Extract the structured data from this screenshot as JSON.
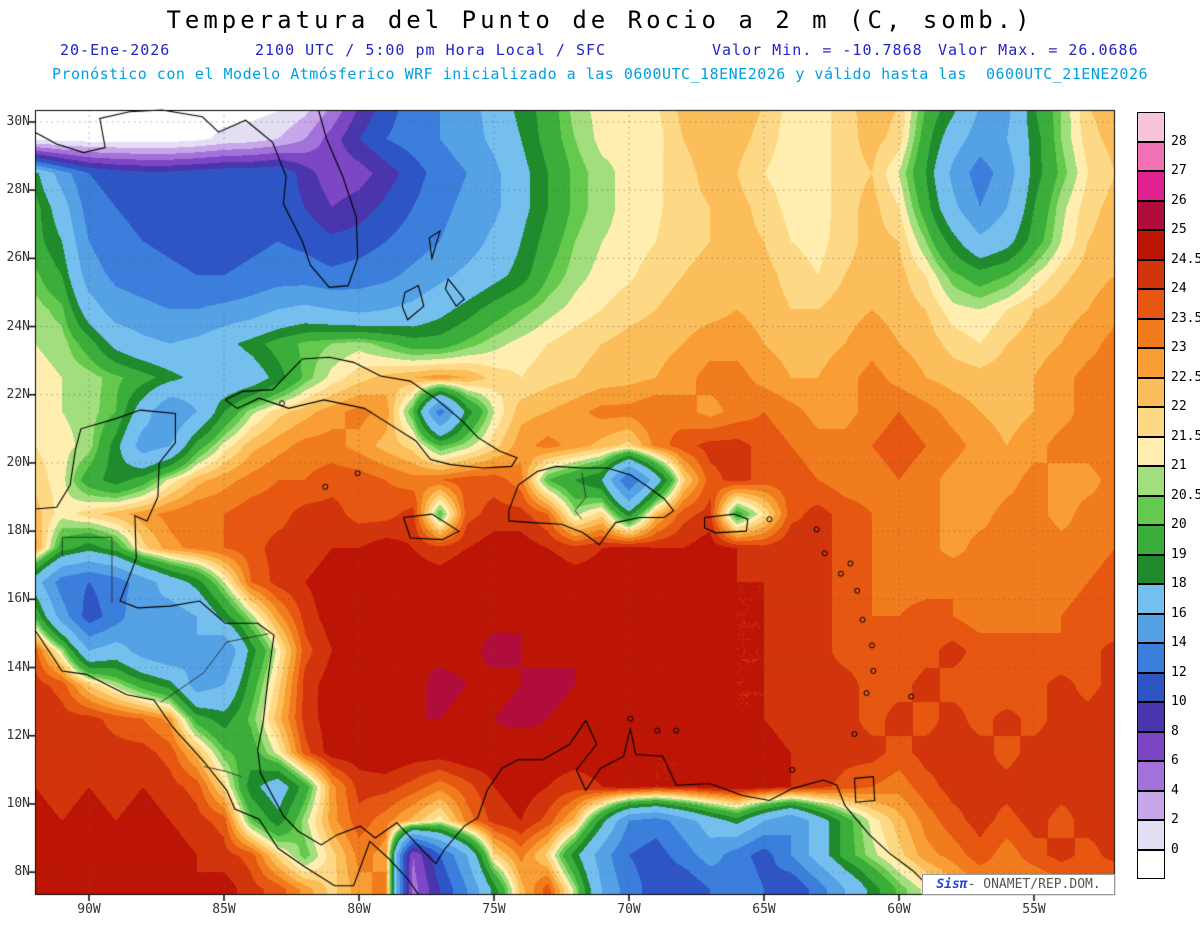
{
  "header": {
    "title": "Temperatura del Punto de Rocio a 2 m (C, somb.)",
    "date": "20-Ene-2026",
    "time_line": "2100 UTC / 5:00 pm Hora Local / SFC",
    "min_label": "Valor Min. = -10.7868",
    "max_label": "Valor Max. = 26.0686",
    "model_line": "Pronóstico con el Modelo Atmósferico WRF inicializado a las 0600UTC_18ENE2026 y válido hasta las  0600UTC_21ENE2026"
  },
  "credit": {
    "brand": "Sisπ",
    "source": "- ONAMET/REP.DOM."
  },
  "axes": {
    "lat_tick_labels": [
      "30N",
      "28N",
      "26N",
      "24N",
      "22N",
      "20N",
      "18N",
      "16N",
      "14N",
      "12N",
      "10N",
      "8N"
    ],
    "lat_tick_values": [
      30,
      28,
      26,
      24,
      22,
      20,
      18,
      16,
      14,
      12,
      10,
      8
    ],
    "lon_tick_labels": [
      "90W",
      "85W",
      "80W",
      "75W",
      "70W",
      "65W",
      "60W",
      "55W"
    ],
    "lon_tick_values": [
      -90,
      -85,
      -80,
      -75,
      -70,
      -65,
      -60,
      -55
    ]
  },
  "colorbar": {
    "levels": [
      0,
      2,
      4,
      6,
      8,
      10,
      12,
      14,
      16,
      18,
      19,
      20,
      20.5,
      21,
      21.5,
      22,
      22.5,
      23,
      23.5,
      24,
      24.5,
      25,
      26,
      27,
      28
    ],
    "labels": [
      "0",
      "2",
      "4",
      "6",
      "8",
      "10",
      "12",
      "14",
      "16",
      "18",
      "19",
      "20",
      "20.5",
      "21",
      "21.5",
      "22",
      "22.5",
      "23",
      "23.5",
      "24",
      "24.5",
      "25",
      "26",
      "27",
      "28"
    ],
    "colors": [
      "#ffffff",
      "#e3def4",
      "#c7a6e9",
      "#a272da",
      "#7d46c4",
      "#4b35ad",
      "#2e55c5",
      "#3b7edb",
      "#55a1e6",
      "#74bfee",
      "#1f8b2c",
      "#3aad3a",
      "#64c94d",
      "#a2dd7e",
      "#ffeeb0",
      "#fed985",
      "#fcbe5a",
      "#f89e34",
      "#f17c1d",
      "#e65711",
      "#d2340b",
      "#bd1505",
      "#b00d3d",
      "#e0218f",
      "#f171b5",
      "#f8c3dc"
    ]
  },
  "chart_data": {
    "type": "heatmap",
    "title": "Temperatura del Punto de Rocio a 2 m (C, somb.)",
    "units": "C",
    "min": -10.7868,
    "max": 26.0686,
    "lon_range": [
      -92,
      -52
    ],
    "lat_range": [
      7.33,
      30.35
    ],
    "grid_lon_start": -92,
    "grid_lon_step": 1,
    "grid_lat_start": 30.5,
    "grid_lat_step": -1,
    "levels": [
      0,
      2,
      4,
      6,
      8,
      10,
      12,
      14,
      16,
      18,
      19,
      20,
      20.5,
      21,
      21.5,
      22,
      22.5,
      23,
      23.5,
      24,
      24.5,
      25,
      26,
      27,
      28
    ],
    "values": [
      [
        -2,
        -2,
        -1,
        -1,
        -1,
        -1,
        -1,
        -1,
        -1,
        -0.5,
        1,
        4,
        8,
        11,
        13,
        14,
        15,
        17,
        18.5,
        19.5,
        20.8,
        21.2,
        21.2,
        21.4,
        22.2,
        22.3,
        22.3,
        22,
        21.3,
        21.2,
        21.8,
        22.3,
        22,
        20,
        18.5,
        16,
        15.5,
        19,
        20.5,
        22,
        22.3
      ],
      [
        -0.5,
        -1,
        -1,
        -1,
        -1,
        -1,
        -0.5,
        0.5,
        1,
        2,
        4,
        7,
        10,
        12,
        13,
        14,
        15,
        16.5,
        18,
        19.5,
        20.5,
        21.2,
        21.2,
        21.3,
        22,
        22.3,
        22.2,
        21.8,
        21.2,
        21.2,
        21.8,
        22.2,
        21.8,
        19.5,
        17,
        15,
        16,
        18.5,
        20.5,
        21.8,
        22.2
      ],
      [
        18.5,
        15,
        12,
        11,
        10.5,
        10.5,
        11,
        11.5,
        11.5,
        12,
        9,
        6.5,
        7,
        9,
        11,
        13,
        14,
        15.5,
        17.5,
        19,
        20.2,
        20.8,
        21.2,
        21.4,
        21.8,
        22.2,
        22,
        21.5,
        21.2,
        21.2,
        21.8,
        22,
        21,
        19,
        15.5,
        13,
        15,
        18.5,
        20.2,
        21.5,
        22
      ],
      [
        19.5,
        17,
        13,
        12,
        11.5,
        11,
        10.5,
        10.5,
        11,
        11.5,
        10,
        8,
        9,
        10.5,
        12,
        13.5,
        14.5,
        15.5,
        17.5,
        19,
        20.2,
        20.8,
        21.2,
        21.4,
        21.8,
        22,
        22.2,
        21.8,
        21.3,
        21.2,
        21.8,
        22.2,
        21.5,
        19.5,
        16.5,
        14,
        16,
        19,
        20.8,
        21.8,
        22.2
      ],
      [
        19.5,
        18,
        14,
        12.5,
        12,
        11.5,
        11,
        11,
        11.5,
        12,
        11.5,
        10.5,
        11,
        12,
        13,
        14,
        15,
        16.5,
        18,
        19.5,
        20.5,
        21,
        21.2,
        21.5,
        21.8,
        22,
        22.2,
        22,
        21.5,
        21.3,
        21.8,
        22.2,
        22,
        20.5,
        18.5,
        16.5,
        17.5,
        19.5,
        21,
        22,
        22.3
      ],
      [
        20.2,
        19,
        15,
        13.5,
        13,
        12.5,
        12,
        12,
        12.5,
        13,
        13,
        12.5,
        13,
        13.5,
        14.5,
        15.5,
        16.5,
        17.5,
        18.5,
        20,
        20.8,
        21.2,
        21.4,
        21.8,
        22,
        22.2,
        22.3,
        22.2,
        21.8,
        21.5,
        22,
        22.3,
        22.2,
        21.5,
        20.2,
        19.5,
        20,
        21,
        21.8,
        22.3,
        22.5
      ],
      [
        20.8,
        20.2,
        17,
        15,
        14.5,
        14,
        14,
        14.5,
        15,
        16,
        16.5,
        16,
        15.5,
        16,
        16.5,
        17.5,
        18.5,
        19.5,
        20.2,
        20.8,
        21.2,
        21.5,
        21.8,
        22,
        22.2,
        22.3,
        22.5,
        22.3,
        22,
        22,
        22.3,
        22.5,
        22.3,
        22,
        21.2,
        21,
        21.5,
        22,
        22.3,
        22.5,
        22.8
      ],
      [
        21,
        20.8,
        19.5,
        17.5,
        16.5,
        16,
        16.5,
        17.5,
        18.5,
        19.5,
        20.2,
        20.5,
        20.8,
        20.2,
        19.5,
        19.5,
        20.2,
        20.8,
        21.2,
        21.5,
        21.8,
        22,
        22.2,
        22.3,
        22.5,
        22.8,
        22.8,
        22.5,
        22.3,
        22.3,
        22.5,
        22.8,
        22.5,
        22.3,
        21.8,
        21.5,
        22,
        22.3,
        22.5,
        22.8,
        23.2
      ],
      [
        21.2,
        21,
        20.8,
        20.2,
        19.5,
        18.5,
        17.5,
        16.5,
        17,
        18.5,
        20.2,
        21.2,
        21.8,
        22.2,
        22.5,
        22.8,
        22.5,
        21.8,
        21.5,
        21.8,
        22,
        22.2,
        22.3,
        22.5,
        22.8,
        23.2,
        23.2,
        22.8,
        22.5,
        22.5,
        22.8,
        23.2,
        22.8,
        22.5,
        22.3,
        22.2,
        22.3,
        22.5,
        22.8,
        23.2,
        23.2
      ],
      [
        21.2,
        21,
        20.8,
        20,
        17,
        14,
        16,
        19,
        20.8,
        21.8,
        22.3,
        22.8,
        23.2,
        22.8,
        20,
        13,
        18.5,
        21,
        22.3,
        22.5,
        22.8,
        23.2,
        23.2,
        23.5,
        23.2,
        22.8,
        23.2,
        23.5,
        23.2,
        22.8,
        22.8,
        23.2,
        23.5,
        23.2,
        22.8,
        22.5,
        22.3,
        22.5,
        22.8,
        23.2,
        23.2
      ],
      [
        21.5,
        21.2,
        20.8,
        18.5,
        15,
        16,
        19.5,
        21.2,
        22.3,
        22.8,
        23.2,
        23.2,
        22.8,
        22.3,
        21.8,
        20,
        20.8,
        21.8,
        22.8,
        23.2,
        22.8,
        22.3,
        21.8,
        23.2,
        23.8,
        24.2,
        24.2,
        23.8,
        23.5,
        23.2,
        23.2,
        23.5,
        23.8,
        23.5,
        23.2,
        22.8,
        22.5,
        22.8,
        23.2,
        23.2,
        23.5
      ],
      [
        21.8,
        21.2,
        19.5,
        18.5,
        19.5,
        21.2,
        22.3,
        22.8,
        23.2,
        23.5,
        23.5,
        23.8,
        23.8,
        23.5,
        23.2,
        23.5,
        23.8,
        23.8,
        23.2,
        20,
        19,
        18,
        12,
        17,
        21.8,
        23.8,
        24.2,
        23.8,
        23.8,
        23.5,
        23.2,
        23.2,
        23.5,
        23.2,
        22.8,
        22.5,
        22.8,
        23.2,
        22.8,
        22.8,
        23.2
      ],
      [
        22.3,
        21.2,
        21.8,
        22.3,
        22.8,
        23.2,
        23.5,
        23.5,
        23.8,
        23.8,
        24.2,
        24.2,
        23.8,
        23.8,
        24.2,
        20,
        23.8,
        24.2,
        24.2,
        23.5,
        20.8,
        21.8,
        18.5,
        22.3,
        23.8,
        24.2,
        19.5,
        21.5,
        23.8,
        24.2,
        23.8,
        23.5,
        23.2,
        23.2,
        22.8,
        22.8,
        23.2,
        23.2,
        22.8,
        23.2,
        23.2
      ],
      [
        22.8,
        19.5,
        18.5,
        19.5,
        21.8,
        22.8,
        23.2,
        23.5,
        23.8,
        24.2,
        24.2,
        24.5,
        24.5,
        24.8,
        24.5,
        24.2,
        24.5,
        24.8,
        24.8,
        24.5,
        24.2,
        24.5,
        24.8,
        24.5,
        24.5,
        24.8,
        24.5,
        24.2,
        24.5,
        24.2,
        23.8,
        23.5,
        23.2,
        23.2,
        22.8,
        23.2,
        23.2,
        23.5,
        23.2,
        23.2,
        23.5
      ],
      [
        17,
        13,
        12,
        13,
        15,
        17,
        18.5,
        21,
        23.5,
        24.2,
        24.5,
        24.8,
        24.8,
        25,
        24.8,
        24.8,
        25,
        24.8,
        24.8,
        25,
        24.8,
        24.8,
        24.8,
        24.8,
        24.5,
        24.8,
        24.5,
        24.5,
        24.2,
        24.2,
        23.8,
        23.5,
        23.2,
        23.2,
        23.5,
        23.2,
        23.2,
        23.5,
        23.2,
        23.5,
        23.8
      ],
      [
        20,
        15,
        11,
        13,
        16,
        15,
        16,
        18.5,
        20.8,
        22.8,
        24.2,
        24.8,
        24.8,
        25,
        24.8,
        25,
        24.8,
        24.8,
        25,
        24.8,
        24.8,
        25,
        24.8,
        24.8,
        24.8,
        24.5,
        24.5,
        24.5,
        24.2,
        24.2,
        23.8,
        23.5,
        23.5,
        23.8,
        23.5,
        23.2,
        23.5,
        23.2,
        23.5,
        23.8,
        23.5
      ],
      [
        23.8,
        20.8,
        16,
        17,
        15,
        14,
        16,
        14,
        18.5,
        21.2,
        23.8,
        24.5,
        24.8,
        24.8,
        25,
        24.8,
        24.8,
        25.2,
        25,
        24.8,
        25,
        24.8,
        24.8,
        25,
        24.8,
        24.8,
        24.5,
        24.5,
        24.2,
        24.2,
        23.8,
        23.8,
        23.5,
        23.8,
        24.2,
        23.8,
        23.5,
        23.8,
        23.5,
        23.8,
        24.2
      ],
      [
        24.2,
        23.8,
        22,
        20.8,
        19.5,
        18.5,
        15,
        16,
        19.5,
        21.8,
        24.2,
        24.8,
        24.8,
        25,
        24.8,
        25.2,
        25,
        24.8,
        25,
        25.2,
        25,
        24.8,
        24.8,
        25,
        24.8,
        24.8,
        24.5,
        24.5,
        24.5,
        24.2,
        24.2,
        23.8,
        23.8,
        24.2,
        23.8,
        23.8,
        23.5,
        23.8,
        24.2,
        23.8,
        24.2
      ],
      [
        24.5,
        24.2,
        24.2,
        23.8,
        23.5,
        22.8,
        19.5,
        18.5,
        20.2,
        22.3,
        24.2,
        24.8,
        25,
        24.8,
        25,
        25,
        24.8,
        25,
        25.2,
        25,
        24.8,
        25,
        24.8,
        24.8,
        24.8,
        24.5,
        24.5,
        24.5,
        24.2,
        24.2,
        24.2,
        23.8,
        24.2,
        23.8,
        24.2,
        23.8,
        24.2,
        23.8,
        24.2,
        24.2,
        24.5
      ],
      [
        24.5,
        24.5,
        24.2,
        24.2,
        24.2,
        23.8,
        22.3,
        20.2,
        19.5,
        21.2,
        23.8,
        24.8,
        24.8,
        25,
        24.8,
        24.8,
        25,
        24.8,
        24.5,
        24.8,
        24.8,
        24.8,
        24.5,
        24.5,
        24.5,
        24.5,
        24.8,
        24.8,
        24.5,
        24.5,
        24.2,
        24.2,
        23.8,
        24.2,
        24.2,
        24.2,
        23.8,
        24.2,
        24.2,
        24.5,
        24.2
      ],
      [
        24.5,
        24.2,
        24.5,
        24.2,
        24.5,
        24.2,
        23.8,
        21.8,
        18.5,
        17,
        19.5,
        22.8,
        24.2,
        24.2,
        23.8,
        23.2,
        23.8,
        24.5,
        24.8,
        24.5,
        24.2,
        24.5,
        24.8,
        24.5,
        24.5,
        24.8,
        25,
        24.8,
        24.5,
        24.2,
        23.8,
        23.5,
        23.2,
        23.8,
        24.2,
        24.2,
        24.2,
        24.5,
        24.2,
        24.2,
        24.5
      ],
      [
        24.8,
        24.5,
        24.8,
        24.5,
        24.8,
        24.5,
        24.2,
        23.8,
        20.2,
        18.5,
        20.8,
        22.8,
        23.8,
        23.2,
        22.3,
        21.2,
        23.2,
        24.2,
        24.5,
        23.8,
        22.3,
        18.5,
        14,
        13,
        15,
        17,
        18.5,
        16,
        14,
        17,
        19.5,
        21.2,
        22.3,
        23.2,
        23.8,
        24.2,
        23.8,
        24.2,
        23.8,
        24.2,
        24.2
      ],
      [
        24.8,
        24.8,
        24.5,
        24.8,
        24.5,
        24.8,
        24.5,
        24.2,
        23.8,
        21.8,
        20.2,
        21.8,
        23.2,
        22.8,
        6,
        12,
        16,
        21.8,
        23.2,
        21.8,
        18.5,
        15,
        12,
        11,
        13,
        15,
        13,
        11,
        14,
        17,
        19.5,
        20.8,
        21.8,
        22.8,
        23.2,
        23.8,
        23.2,
        23.8,
        24.2,
        23.8,
        24.2
      ],
      [
        24.8,
        24.5,
        24.8,
        24.8,
        24.5,
        24.8,
        24.5,
        24.8,
        24.2,
        23.8,
        22.8,
        21.8,
        22.8,
        23.2,
        5,
        10,
        14,
        18.5,
        22.3,
        23.8,
        20.8,
        16,
        13,
        11,
        10,
        12,
        14,
        12,
        10,
        13,
        16,
        18.5,
        20.2,
        21.2,
        22.3,
        22.8,
        23.2,
        22.8,
        23.2,
        23.8,
        23.2
      ]
    ]
  }
}
